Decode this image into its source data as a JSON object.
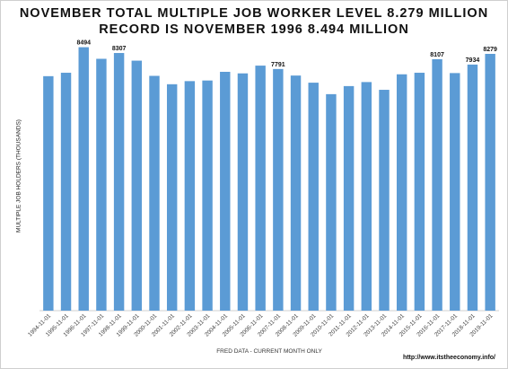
{
  "chart_data": {
    "type": "bar",
    "title": "NOVEMBER TOTAL MULTIPLE JOB WORKER LEVEL 8.279 MILLION",
    "subtitle": "RECORD IS NOVEMBER 1996 8.494 MILLION",
    "xlabel": "FRED DATA - CURRENT MONTH ONLY",
    "ylabel": "MULTIPLE JOB HOLDERS (THOUSANDS)",
    "categories": [
      "1994-11-01",
      "1995-11-01",
      "1996-11-01",
      "1997-11-01",
      "1998-11-01",
      "1999-11-01",
      "2000-11-01",
      "2001-11-01",
      "2002-11-01",
      "2003-11-01",
      "2004-11-01",
      "2005-11-01",
      "2006-11-01",
      "2007-11-01",
      "2008-11-01",
      "2009-11-01",
      "2010-11-01",
      "2011-11-01",
      "2012-11-01",
      "2013-11-01",
      "2014-11-01",
      "2015-11-01",
      "2016-11-01",
      "2017-11-01",
      "2018-11-01",
      "2019-11-01"
    ],
    "values": [
      7560,
      7670,
      8494,
      8120,
      8307,
      8060,
      7570,
      7300,
      7400,
      7420,
      7700,
      7650,
      7900,
      7791,
      7580,
      7350,
      6980,
      7240,
      7370,
      7120,
      7620,
      7670,
      8107,
      7660,
      7934,
      8279
    ],
    "data_labels": {
      "2": "8494",
      "4": "8307",
      "13": "7791",
      "22": "8107",
      "24": "7934",
      "25": "8279"
    },
    "ylim": [
      0,
      8800
    ],
    "color": "#5b9bd5",
    "grid": false,
    "legend": "none"
  },
  "source_text": "http://www.itstheeconomy.info/"
}
